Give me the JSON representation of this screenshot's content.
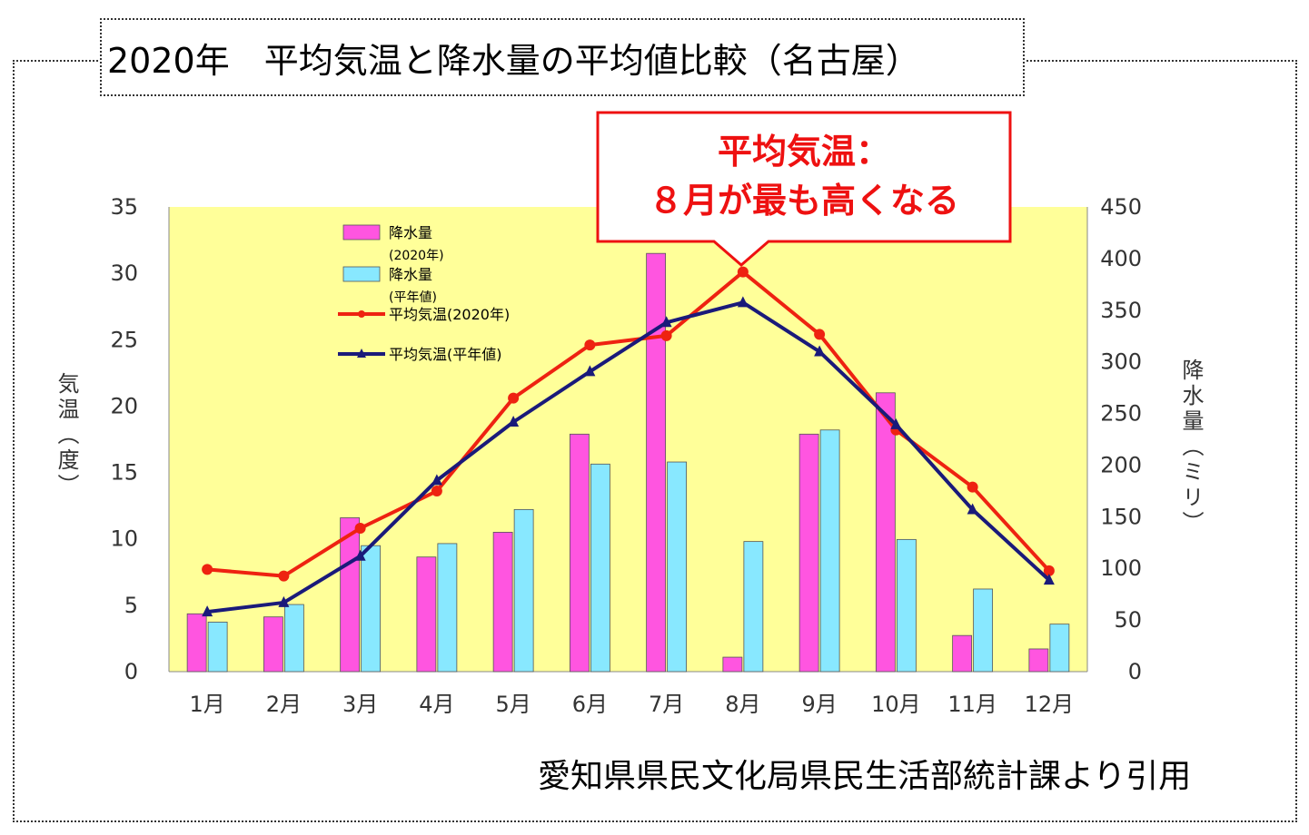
{
  "title": "2020年　平均気温と降水量の平均値比較（名古屋）",
  "callout": {
    "line1": "平均気温：",
    "line2": "８月が最も高くなる"
  },
  "source": "愛知県県民文化局県民生活部統計課より引用",
  "colors": {
    "plot_bg": "#ffff99",
    "rain_2020": "#ff55e0",
    "rain_normal": "#88e8ff",
    "temp_2020": "#ee2211",
    "temp_normal": "#1a1a7a",
    "callout_border": "#ee1111"
  },
  "chart_data": {
    "type": "bar+line",
    "categories": [
      "1月",
      "2月",
      "3月",
      "4月",
      "5月",
      "6月",
      "7月",
      "8月",
      "9月",
      "10月",
      "11月",
      "12月"
    ],
    "ylabel_left": "気温（度）",
    "ylabel_right": "降水量（ミリ）",
    "ylim_left": [
      0,
      35
    ],
    "yticks_left": [
      0,
      5,
      10,
      15,
      20,
      25,
      30,
      35
    ],
    "ylim_right": [
      0,
      450
    ],
    "yticks_right": [
      0,
      50,
      100,
      150,
      200,
      250,
      300,
      350,
      400,
      450
    ],
    "legend_position": "top-left",
    "grid": false,
    "bar_series": [
      {
        "name": "降水量",
        "sub": "(2020年)",
        "axis": "right",
        "values": [
          56,
          53,
          149,
          111,
          135,
          230,
          405,
          14,
          230,
          270,
          35,
          22
        ]
      },
      {
        "name": "降水量",
        "sub": "(平年値)",
        "axis": "right",
        "values": [
          48,
          65,
          122,
          124,
          157,
          201,
          203,
          126,
          234,
          128,
          80,
          46
        ]
      }
    ],
    "line_series": [
      {
        "name": "平均気温(2020年)",
        "axis": "left",
        "values": [
          7.7,
          7.2,
          10.8,
          13.6,
          20.6,
          24.6,
          25.3,
          30.1,
          25.4,
          18.2,
          13.9,
          7.6
        ]
      },
      {
        "name": "平均気温(平年値)",
        "axis": "left",
        "values": [
          4.5,
          5.2,
          8.7,
          14.4,
          18.8,
          22.6,
          26.3,
          27.8,
          24.1,
          18.6,
          12.2,
          6.9
        ]
      }
    ]
  }
}
